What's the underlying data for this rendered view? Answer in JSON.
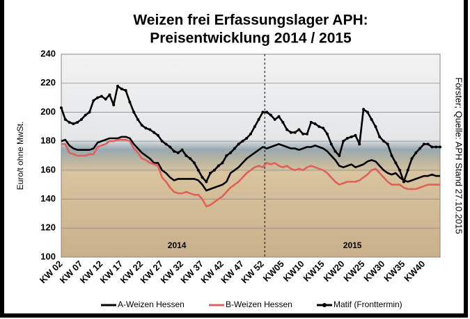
{
  "chart_data": {
    "type": "line",
    "title": [
      "Weizen frei Erfassungslager APH:",
      "Preisentwicklung 2014 / 2015"
    ],
    "y_label": "Euro/t ohne MwSt.",
    "source": "Förster; Quelle: APH Stand 27.10.2015",
    "annotations": [
      "2014",
      "2015"
    ],
    "categories": [
      "KW 02",
      null,
      null,
      null,
      null,
      "KW 07",
      null,
      null,
      null,
      null,
      "KW 12",
      null,
      null,
      null,
      null,
      "KW 17",
      null,
      null,
      null,
      null,
      "KW 22",
      null,
      null,
      null,
      null,
      "KW 27",
      null,
      null,
      null,
      null,
      "KW 32",
      null,
      null,
      null,
      null,
      "KW 37",
      null,
      null,
      null,
      null,
      "KW 42",
      null,
      null,
      null,
      null,
      "KW 47",
      null,
      null,
      null,
      null,
      "KW 52",
      null,
      null,
      null,
      null,
      "KW05",
      null,
      null,
      null,
      null,
      "KW10",
      null,
      null,
      null,
      null,
      "KW15",
      null,
      null,
      null,
      null,
      "KW20",
      null,
      null,
      null,
      null,
      "KW25",
      null,
      null,
      null,
      null,
      "KW30",
      null,
      null,
      null,
      null,
      "KW35",
      null,
      null,
      null,
      null,
      "KW40",
      null,
      null,
      null,
      null
    ],
    "series": [
      {
        "name": "A-Weizen Hessen",
        "color": "#000000",
        "marker": false,
        "values": [
          180,
          181,
          177,
          175,
          174,
          174,
          174,
          174,
          175,
          179,
          180,
          181,
          182,
          182,
          182,
          183,
          183,
          182,
          178,
          175,
          172,
          170,
          168,
          165,
          165,
          160,
          158,
          155,
          153,
          154,
          154,
          154,
          154,
          154,
          153,
          150,
          146,
          147,
          148,
          149,
          150,
          152,
          158,
          160,
          162,
          165,
          168,
          170,
          172,
          174,
          176,
          175,
          176,
          177,
          178,
          177,
          176,
          175,
          175,
          174,
          175,
          176,
          176,
          177,
          176,
          175,
          173,
          170,
          167,
          163,
          162,
          163,
          164,
          162,
          163,
          164,
          166,
          167,
          166,
          163,
          160,
          158,
          157,
          158,
          155,
          153,
          152,
          153,
          154,
          155,
          156,
          156,
          157,
          156,
          156
        ]
      },
      {
        "name": "B-Weizen Hessen",
        "color": "#e0605a",
        "marker": false,
        "values": [
          178,
          178,
          172,
          171,
          170,
          170,
          170,
          171,
          171,
          176,
          177,
          178,
          180,
          180,
          181,
          181,
          181,
          180,
          175,
          172,
          168,
          167,
          165,
          164,
          163,
          155,
          152,
          148,
          145,
          144,
          144,
          145,
          144,
          143,
          143,
          140,
          135,
          136,
          138,
          140,
          142,
          145,
          148,
          150,
          152,
          155,
          158,
          160,
          162,
          163,
          162,
          165,
          164,
          165,
          163,
          162,
          163,
          161,
          160,
          161,
          160,
          162,
          163,
          162,
          161,
          160,
          158,
          155,
          152,
          150,
          151,
          152,
          152,
          152,
          153,
          155,
          157,
          160,
          161,
          158,
          155,
          152,
          150,
          150,
          150,
          148,
          147,
          147,
          147,
          148,
          149,
          150,
          150,
          150,
          150
        ]
      },
      {
        "name": "Matif (Fronttermin)",
        "color": "#000000",
        "marker": true,
        "values": [
          203,
          195,
          193,
          192,
          193,
          195,
          198,
          200,
          208,
          210,
          211,
          209,
          212,
          205,
          218,
          216,
          215,
          207,
          200,
          195,
          191,
          189,
          188,
          186,
          184,
          180,
          178,
          176,
          173,
          172,
          174,
          170,
          168,
          165,
          160,
          155,
          152,
          158,
          160,
          163,
          165,
          170,
          172,
          175,
          178,
          180,
          182,
          185,
          190,
          195,
          200,
          200,
          198,
          195,
          197,
          193,
          188,
          186,
          186,
          188,
          185,
          185,
          193,
          192,
          190,
          189,
          185,
          178,
          173,
          170,
          180,
          182,
          183,
          184,
          178,
          202,
          200,
          195,
          190,
          183,
          180,
          178,
          170,
          165,
          160,
          152,
          160,
          168,
          172,
          175,
          178,
          178,
          176,
          176,
          176
        ]
      }
    ],
    "ylim": [
      100,
      240
    ],
    "yticks": [
      100,
      120,
      140,
      160,
      180,
      200,
      220,
      240
    ],
    "grid": true
  }
}
